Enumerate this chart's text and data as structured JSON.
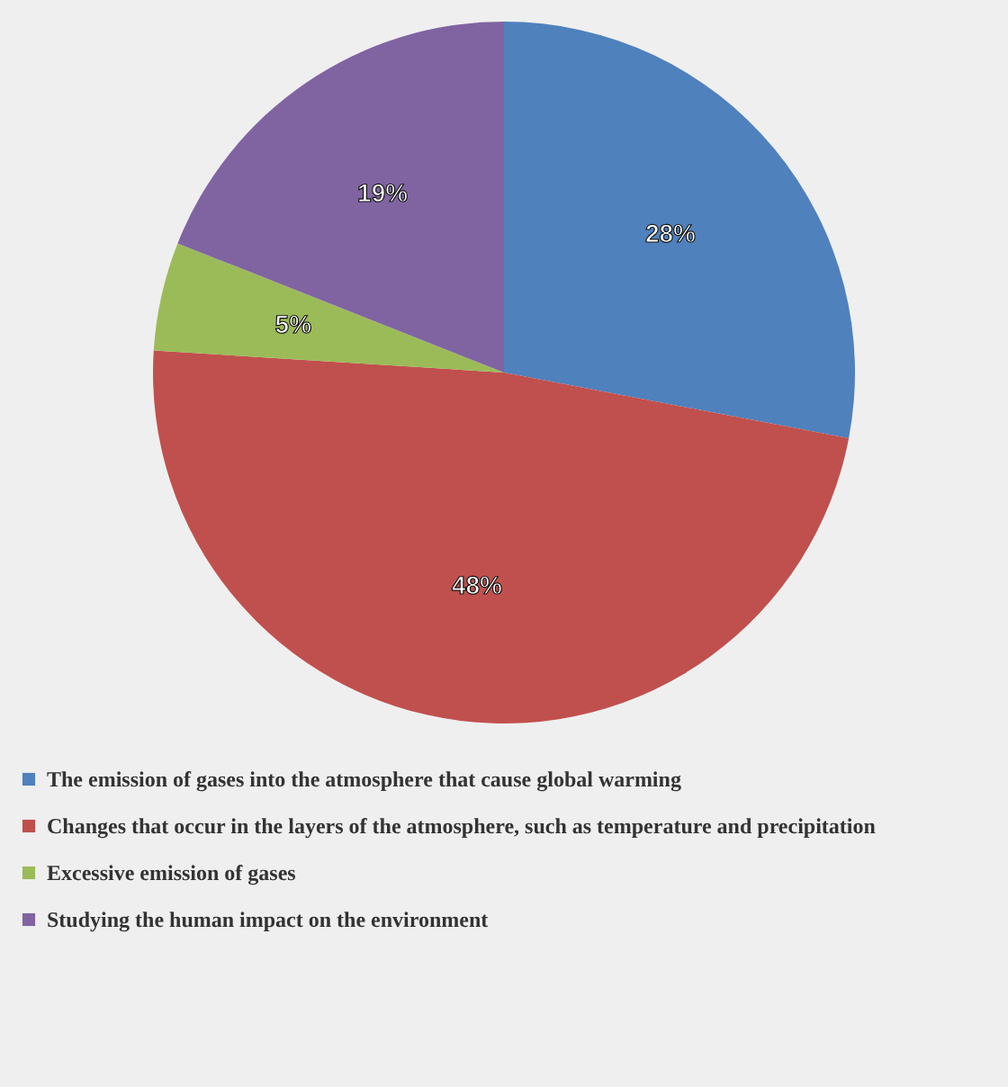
{
  "chart_data": {
    "type": "pie",
    "categories": [
      "The emission of gases into the atmosphere that cause global warming",
      "Changes that occur in the layers of the atmosphere, such as temperature and precipitation",
      "Excessive emission of gases",
      "Studying the human impact on the environment"
    ],
    "values": [
      28,
      48,
      5,
      19
    ],
    "colors": [
      "#4f81bd",
      "#c0504d",
      "#9bbb59",
      "#8064a2"
    ],
    "value_labels": [
      "28%",
      "48%",
      "5%",
      "19%"
    ],
    "legend": "bottom"
  }
}
